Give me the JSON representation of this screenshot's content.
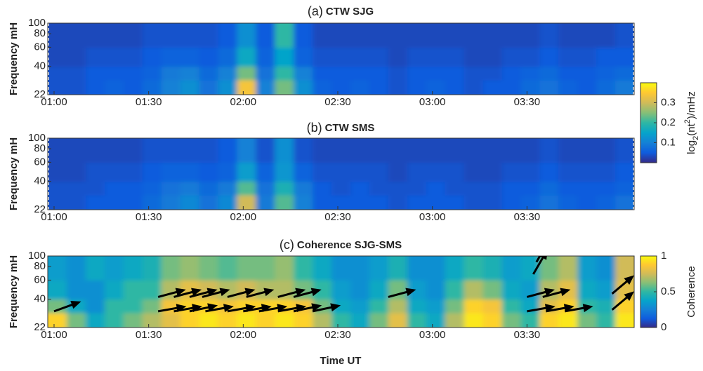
{
  "chart_data": [
    {
      "type": "heatmap",
      "label": "(a)",
      "title": "CTW SJG",
      "ylabel": "Frequency mH",
      "x_edges": [
        58,
        64,
        70,
        76,
        82,
        88,
        94,
        100,
        106,
        112,
        118,
        124,
        130,
        136,
        142,
        148,
        154,
        160,
        166,
        172,
        178,
        184,
        190,
        196,
        202,
        208,
        214,
        220,
        226,
        232,
        238,
        244
      ],
      "y_edges": [
        22,
        30,
        40,
        60,
        100
      ],
      "log_y": true,
      "xlim": [
        58,
        244
      ],
      "xticks": [
        {
          "value": 60,
          "label": "01:00"
        },
        {
          "value": 90,
          "label": "01:30"
        },
        {
          "value": 120,
          "label": "02:00"
        },
        {
          "value": 150,
          "label": "02:30"
        },
        {
          "value": 180,
          "label": "03:00"
        },
        {
          "value": 210,
          "label": "03:30"
        }
      ],
      "ylim": [
        22,
        100
      ],
      "yticks": [
        22,
        40,
        60,
        80,
        100
      ],
      "clim": [
        0,
        0.4
      ],
      "z": [
        [
          0.04,
          0.04,
          0.05,
          0.06,
          0.05,
          0.07,
          0.1,
          0.12,
          0.08,
          0.12,
          0.34,
          0.1,
          0.24,
          0.12,
          0.06,
          0.05,
          0.06,
          0.05,
          0.04,
          0.05,
          0.06,
          0.05,
          0.04,
          0.05,
          0.05,
          0.07,
          0.08,
          0.06,
          0.05,
          0.07,
          0.09
        ],
        [
          0.04,
          0.04,
          0.05,
          0.05,
          0.05,
          0.06,
          0.09,
          0.1,
          0.07,
          0.1,
          0.24,
          0.08,
          0.2,
          0.1,
          0.05,
          0.05,
          0.05,
          0.05,
          0.04,
          0.05,
          0.05,
          0.05,
          0.04,
          0.04,
          0.05,
          0.06,
          0.07,
          0.05,
          0.05,
          0.06,
          0.07
        ],
        [
          0.03,
          0.03,
          0.04,
          0.04,
          0.04,
          0.05,
          0.06,
          0.06,
          0.05,
          0.07,
          0.16,
          0.06,
          0.15,
          0.06,
          0.04,
          0.04,
          0.04,
          0.04,
          0.03,
          0.04,
          0.04,
          0.04,
          0.03,
          0.03,
          0.04,
          0.04,
          0.05,
          0.04,
          0.04,
          0.05,
          0.05
        ],
        [
          0.03,
          0.03,
          0.03,
          0.03,
          0.03,
          0.04,
          0.04,
          0.04,
          0.04,
          0.05,
          0.12,
          0.05,
          0.2,
          0.05,
          0.03,
          0.03,
          0.03,
          0.03,
          0.03,
          0.03,
          0.03,
          0.03,
          0.03,
          0.03,
          0.03,
          0.03,
          0.04,
          0.03,
          0.03,
          0.03,
          0.04
        ]
      ],
      "colorbar": {
        "label_parts": [
          "log",
          "2",
          "(nt",
          "2",
          ")/mHz"
        ],
        "ticks": [
          0.1,
          0.2,
          0.3
        ]
      }
    },
    {
      "type": "heatmap",
      "label": "(b)",
      "title": "CTW SMS",
      "ylabel": "Frequency mH",
      "x_edges": [
        58,
        64,
        70,
        76,
        82,
        88,
        94,
        100,
        106,
        112,
        118,
        124,
        130,
        136,
        142,
        148,
        154,
        160,
        166,
        172,
        178,
        184,
        190,
        196,
        202,
        208,
        214,
        220,
        226,
        232,
        238,
        244
      ],
      "y_edges": [
        22,
        30,
        40,
        60,
        100
      ],
      "log_y": true,
      "xlim": [
        58,
        244
      ],
      "xticks": [
        {
          "value": 60,
          "label": "01:00"
        },
        {
          "value": 90,
          "label": "01:30"
        },
        {
          "value": 120,
          "label": "02:00"
        },
        {
          "value": 150,
          "label": "02:30"
        },
        {
          "value": 180,
          "label": "03:00"
        },
        {
          "value": 210,
          "label": "03:30"
        }
      ],
      "ylim": [
        22,
        100
      ],
      "yticks": [
        22,
        40,
        60,
        80,
        100
      ],
      "clim": [
        0,
        0.4
      ],
      "z": [
        [
          0.04,
          0.04,
          0.05,
          0.05,
          0.05,
          0.07,
          0.09,
          0.11,
          0.08,
          0.11,
          0.3,
          0.09,
          0.22,
          0.1,
          0.05,
          0.05,
          0.05,
          0.05,
          0.04,
          0.05,
          0.05,
          0.05,
          0.04,
          0.04,
          0.05,
          0.06,
          0.08,
          0.06,
          0.05,
          0.06,
          0.08
        ],
        [
          0.04,
          0.04,
          0.04,
          0.05,
          0.05,
          0.06,
          0.08,
          0.09,
          0.07,
          0.09,
          0.22,
          0.08,
          0.18,
          0.09,
          0.05,
          0.04,
          0.05,
          0.04,
          0.04,
          0.04,
          0.05,
          0.04,
          0.04,
          0.04,
          0.05,
          0.05,
          0.07,
          0.05,
          0.05,
          0.05,
          0.06
        ],
        [
          0.03,
          0.03,
          0.04,
          0.04,
          0.04,
          0.05,
          0.06,
          0.06,
          0.05,
          0.06,
          0.14,
          0.06,
          0.13,
          0.06,
          0.04,
          0.04,
          0.04,
          0.04,
          0.03,
          0.04,
          0.04,
          0.04,
          0.03,
          0.03,
          0.04,
          0.04,
          0.05,
          0.04,
          0.04,
          0.04,
          0.05
        ],
        [
          0.03,
          0.03,
          0.03,
          0.03,
          0.03,
          0.04,
          0.04,
          0.04,
          0.04,
          0.05,
          0.1,
          0.04,
          0.12,
          0.04,
          0.03,
          0.03,
          0.03,
          0.03,
          0.03,
          0.03,
          0.03,
          0.03,
          0.03,
          0.03,
          0.03,
          0.03,
          0.04,
          0.03,
          0.03,
          0.03,
          0.04
        ]
      ]
    },
    {
      "type": "heatmap",
      "label": "(c)",
      "title": "Coherence SJG-SMS",
      "ylabel": "Frequency mH",
      "xlabel": "Time UT",
      "x_edges": [
        58,
        64,
        70,
        76,
        82,
        88,
        94,
        100,
        106,
        112,
        118,
        124,
        130,
        136,
        142,
        148,
        154,
        160,
        166,
        172,
        178,
        184,
        190,
        196,
        202,
        208,
        214,
        220,
        226,
        232,
        238,
        244
      ],
      "y_edges": [
        22,
        30,
        40,
        60,
        100
      ],
      "log_y": true,
      "xlim": [
        58,
        244
      ],
      "xticks": [
        {
          "value": 60,
          "label": "01:00"
        },
        {
          "value": 90,
          "label": "01:30"
        },
        {
          "value": 120,
          "label": "02:00"
        },
        {
          "value": 150,
          "label": "02:30"
        },
        {
          "value": 180,
          "label": "03:00"
        },
        {
          "value": 210,
          "label": "03:30"
        }
      ],
      "ylim": [
        22,
        100
      ],
      "yticks": [
        22,
        40,
        60,
        80,
        100
      ],
      "clim": [
        0,
        1
      ],
      "z": [
        [
          0.9,
          0.6,
          0.4,
          0.5,
          0.6,
          0.7,
          0.8,
          0.9,
          0.95,
          0.9,
          0.95,
          0.9,
          0.95,
          0.9,
          0.7,
          0.5,
          0.4,
          0.6,
          0.8,
          0.5,
          0.4,
          0.7,
          0.95,
          0.9,
          0.6,
          0.5,
          0.9,
          0.95,
          0.6,
          0.5,
          0.95
        ],
        [
          0.6,
          0.4,
          0.3,
          0.5,
          0.5,
          0.6,
          0.85,
          0.9,
          0.9,
          0.85,
          0.9,
          0.9,
          0.9,
          0.85,
          0.6,
          0.4,
          0.35,
          0.5,
          0.7,
          0.4,
          0.35,
          0.6,
          0.9,
          0.85,
          0.5,
          0.4,
          0.8,
          0.9,
          0.5,
          0.45,
          0.9
        ],
        [
          0.4,
          0.3,
          0.3,
          0.4,
          0.5,
          0.5,
          0.7,
          0.8,
          0.75,
          0.7,
          0.75,
          0.7,
          0.7,
          0.6,
          0.5,
          0.35,
          0.3,
          0.4,
          0.6,
          0.35,
          0.3,
          0.5,
          0.7,
          0.6,
          0.4,
          0.35,
          0.7,
          0.8,
          0.4,
          0.35,
          0.8
        ],
        [
          0.35,
          0.3,
          0.4,
          0.35,
          0.4,
          0.45,
          0.6,
          0.65,
          0.6,
          0.55,
          0.6,
          0.6,
          0.65,
          0.5,
          0.4,
          0.3,
          0.3,
          0.35,
          0.45,
          0.3,
          0.3,
          0.4,
          0.5,
          0.45,
          0.35,
          0.4,
          0.6,
          0.7,
          0.35,
          0.3,
          0.75
        ]
      ],
      "arrows": [
        {
          "t": 93,
          "f": 42,
          "angle": 15
        },
        {
          "t": 98,
          "f": 42,
          "angle": 15
        },
        {
          "t": 103,
          "f": 42,
          "angle": 15
        },
        {
          "t": 107,
          "f": 42,
          "angle": 15
        },
        {
          "t": 115,
          "f": 42,
          "angle": 15
        },
        {
          "t": 121,
          "f": 42,
          "angle": 15
        },
        {
          "t": 131,
          "f": 42,
          "angle": 15
        },
        {
          "t": 136,
          "f": 42,
          "angle": 15
        },
        {
          "t": 93,
          "f": 31,
          "angle": 10
        },
        {
          "t": 98,
          "f": 31,
          "angle": 10
        },
        {
          "t": 103,
          "f": 31,
          "angle": 12
        },
        {
          "t": 108,
          "f": 31,
          "angle": 10
        },
        {
          "t": 115,
          "f": 31,
          "angle": 10
        },
        {
          "t": 120,
          "f": 31,
          "angle": 10
        },
        {
          "t": 125,
          "f": 31,
          "angle": 10
        },
        {
          "t": 131,
          "f": 31,
          "angle": 10
        },
        {
          "t": 136,
          "f": 31,
          "angle": 12
        },
        {
          "t": 142,
          "f": 31,
          "angle": 12
        },
        {
          "t": 166,
          "f": 42,
          "angle": 15
        },
        {
          "t": 210,
          "f": 42,
          "angle": 15
        },
        {
          "t": 215,
          "f": 42,
          "angle": 15
        },
        {
          "t": 210,
          "f": 31,
          "angle": 10
        },
        {
          "t": 216,
          "f": 31,
          "angle": 10
        },
        {
          "t": 222,
          "f": 31,
          "angle": 10
        },
        {
          "t": 212,
          "f": 68,
          "angle": 60
        },
        {
          "t": 213,
          "f": 88,
          "angle": 60
        },
        {
          "t": 237,
          "f": 45,
          "angle": 40
        },
        {
          "t": 237,
          "f": 32,
          "angle": 40
        },
        {
          "t": 60,
          "f": 31,
          "angle": 20
        }
      ],
      "colorbar": {
        "label_parts": [
          "Coherence"
        ],
        "ticks": [
          0,
          0.5,
          1
        ]
      }
    }
  ]
}
